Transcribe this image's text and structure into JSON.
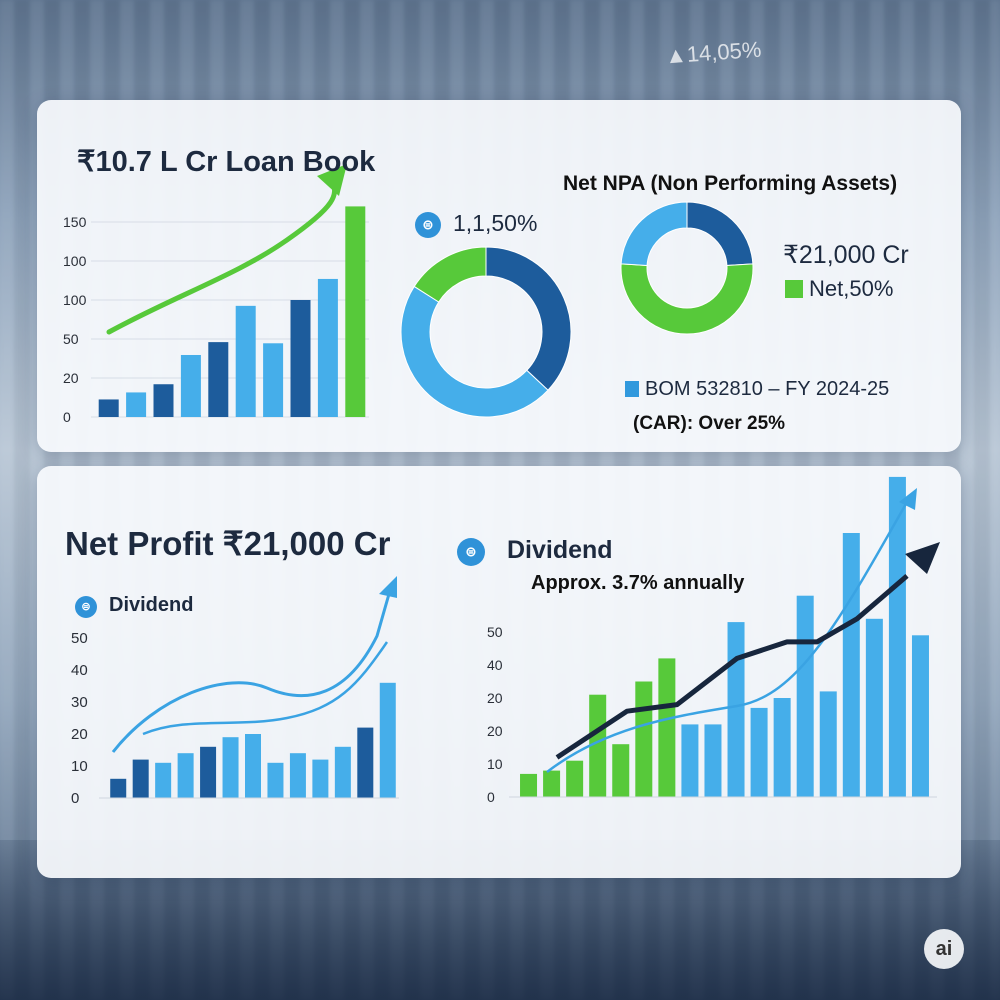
{
  "background": {
    "corner_figure": "▲14,05%"
  },
  "colors": {
    "dark_blue": "#1d5c9c",
    "mid_blue": "#3199dd",
    "light_blue": "#45aeea",
    "green": "#57c93a",
    "navy": "#17263d",
    "bg_figure_color": "#ffffff"
  },
  "icons": {
    "dividend_icon": "coin-badge-icon",
    "trend_arrow": "up-arrow-icon"
  },
  "chart_data": [
    {
      "id": "loan_book",
      "type": "bar",
      "title": "₹10.7 L Cr Loan Book",
      "ytick_labels": [
        "0",
        "20",
        "50",
        "100",
        "100",
        "150"
      ],
      "values": [
        15,
        21,
        28,
        53,
        64,
        95,
        63,
        100,
        118,
        180
      ],
      "bar_colors": [
        "dark",
        "light",
        "dark",
        "light",
        "dark",
        "light",
        "light",
        "dark",
        "light",
        "green"
      ],
      "trend_arrow": true
    },
    {
      "id": "donut_left",
      "type": "pie",
      "label": "1,1,50%",
      "slices": [
        {
          "color": "dark_blue",
          "value": 37
        },
        {
          "color": "light_blue",
          "value": 47
        },
        {
          "color": "green",
          "value": 16
        }
      ]
    },
    {
      "id": "npa",
      "type": "pie",
      "title": "Net NPA (Non Performing Assets)",
      "amount": "₹21,000 Cr",
      "legend": [
        "Net,50%",
        "BOM 532810 – FY 2024-25"
      ],
      "note": "(CAR): Over 25%",
      "slices": [
        {
          "color": "dark_blue",
          "value": 24
        },
        {
          "color": "green",
          "value": 52
        },
        {
          "color": "light_blue",
          "value": 24
        }
      ]
    },
    {
      "id": "net_profit",
      "type": "bar",
      "title": "Net Profit ₹21,000 Cr",
      "legend": "Dividend",
      "ytick_labels": [
        "0",
        "10",
        "20",
        "30",
        "40",
        "50"
      ],
      "values": [
        6,
        12,
        11,
        14,
        16,
        19,
        20,
        11,
        14,
        12,
        16,
        22,
        36
      ],
      "bar_colors": [
        "dark",
        "dark",
        "light",
        "light",
        "dark",
        "light",
        "light",
        "light",
        "light",
        "light",
        "light",
        "dark",
        "light"
      ],
      "trend_arrow": true
    },
    {
      "id": "dividend",
      "type": "bar",
      "title": "Dividend",
      "subtitle": "Approx. 3.7% annually",
      "ytick_labels": [
        "0",
        "10",
        "20",
        "20",
        "40",
        "50"
      ],
      "values": [
        7,
        8,
        11,
        31,
        16,
        35,
        42,
        22,
        22,
        53,
        27,
        30,
        61,
        32,
        80,
        54,
        97,
        49
      ],
      "bar_colors": [
        "green",
        "green",
        "green",
        "green",
        "green",
        "green",
        "green",
        "light",
        "light",
        "light",
        "light",
        "light",
        "light",
        "light",
        "light",
        "light",
        "light",
        "light"
      ],
      "trend_line": [
        12,
        26,
        28,
        42,
        47,
        47,
        54,
        67
      ],
      "trend_arrow": true
    }
  ]
}
